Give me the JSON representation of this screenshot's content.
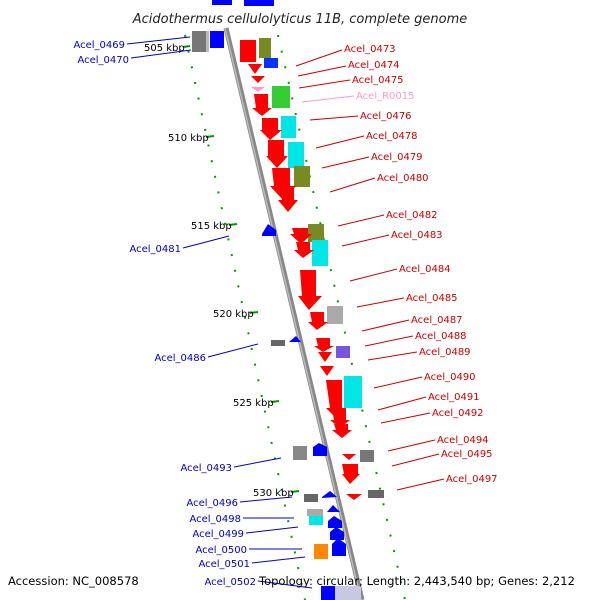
{
  "title": "Acidothermus cellulolyticus 11B, complete genome",
  "footer": {
    "accession": "Accession: NC_008578",
    "stats": "Topology: circular; Length: 2,443,540 bp; Genes: 2,212"
  },
  "colors": {
    "plus_gene": "#ff0000",
    "minus_gene": "#0000ff",
    "rna_gene": "#ff99cc",
    "dna_axis": "#888888",
    "tick": "#009900"
  },
  "ticks": [
    "505 kbp",
    "510 kbp",
    "515 kbp",
    "520 kbp",
    "525 kbp",
    "530 kbp"
  ],
  "left_labels": [
    "Acel_0469",
    "Acel_0470",
    "Acel_0481",
    "Acel_0486",
    "Acel_0493",
    "Acel_0496",
    "Acel_0498",
    "Acel_0499",
    "Acel_0500",
    "Acel_0501",
    "Acel_0502"
  ],
  "right_labels": [
    "Acel_0473",
    "Acel_0474",
    "Acel_0475",
    "Acel_R0015",
    "Acel_0476",
    "Acel_0478",
    "Acel_0479",
    "Acel_0480",
    "Acel_0482",
    "Acel_0483",
    "Acel_0484",
    "Acel_0485",
    "Acel_0487",
    "Acel_0488",
    "Acel_0489",
    "Acel_0490",
    "Acel_0491",
    "Acel_0492",
    "Acel_0494",
    "Acel_0495",
    "Acel_0497"
  ]
}
